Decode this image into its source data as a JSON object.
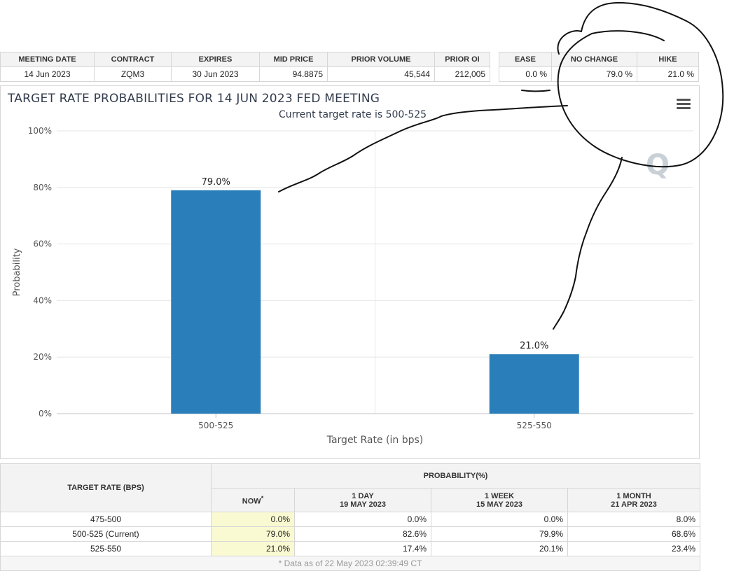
{
  "summary": {
    "headers": [
      "MEETING DATE",
      "CONTRACT",
      "EXPIRES",
      "MID PRICE",
      "PRIOR VOLUME",
      "PRIOR OI",
      "EASE",
      "NO CHANGE",
      "HIKE"
    ],
    "values": [
      "14 Jun 2023",
      "ZQM3",
      "30 Jun 2023",
      "94.8875",
      "45,544",
      "212,005",
      "0.0 %",
      "79.0 %",
      "21.0 %"
    ]
  },
  "chart": {
    "title": "TARGET RATE PROBABILITIES FOR 14 JUN 2023 FED MEETING",
    "subtitle": "Current target rate is 500-525",
    "menu_icon": "hamburger-menu-icon",
    "watermark_icon": "q-logo-icon"
  },
  "chart_data": {
    "type": "bar",
    "categories": [
      "500-525",
      "525-550"
    ],
    "values": [
      79.0,
      21.0
    ],
    "data_labels": [
      "79.0%",
      "21.0%"
    ],
    "xlabel": "Target Rate (in bps)",
    "ylabel": "Probability",
    "ylim": [
      0,
      100
    ],
    "yticks": [
      "0%",
      "20%",
      "40%",
      "60%",
      "80%",
      "100%"
    ],
    "yticks_values": [
      0,
      20,
      40,
      60,
      80,
      100
    ],
    "grid": true,
    "bar_color": "#2a7fba"
  },
  "prob_table": {
    "col_header_rate": "TARGET RATE (BPS)",
    "col_header_prob": "PROBABILITY(%)",
    "now_label": "NOW",
    "now_marker": "*",
    "day_label": "1 DAY",
    "day_date": "19 MAY 2023",
    "week_label": "1 WEEK",
    "week_date": "15 MAY 2023",
    "month_label": "1 MONTH",
    "month_date": "21 APR 2023",
    "rows": [
      {
        "rate": "475-500",
        "now": "0.0%",
        "day": "0.0%",
        "week": "0.0%",
        "month": "8.0%"
      },
      {
        "rate": "500-525 (Current)",
        "now": "79.0%",
        "day": "82.6%",
        "week": "79.9%",
        "month": "68.6%"
      },
      {
        "rate": "525-550",
        "now": "21.0%",
        "day": "17.4%",
        "week": "20.1%",
        "month": "23.4%"
      }
    ],
    "footnote": "* Data as of 22 May 2023 02:39:49 CT"
  }
}
